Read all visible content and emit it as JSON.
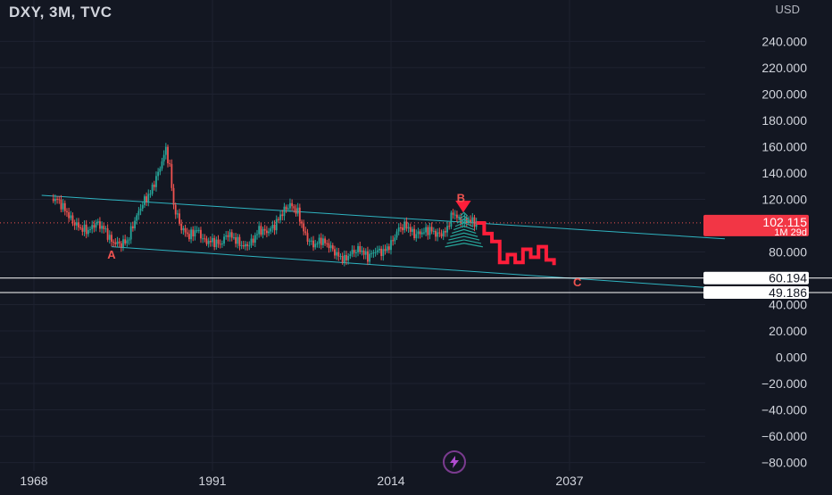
{
  "header": {
    "symbol": "DXY, 3M, TVC",
    "currency": "USD"
  },
  "markers": {
    "lightning_icon": "lightning-icon"
  },
  "colors": {
    "background": "#131722",
    "grid": "#1e2230",
    "axis_text": "#d1d4dc",
    "up": "#26a69a",
    "down": "#ef5350",
    "forecast": "#ff1e3a",
    "channel": "#2fb4c1",
    "price_label_bg": "#f23645",
    "hline": "#ffffff"
  },
  "chart_data": {
    "type": "candlestick",
    "x_axis": {
      "ticks": [
        "1968",
        "1991",
        "2014",
        "2037"
      ],
      "range": [
        1966,
        2057
      ]
    },
    "y_axis": {
      "ticks": [
        "240.000",
        "220.000",
        "200.000",
        "180.000",
        "160.000",
        "140.000",
        "120.000",
        "80.000",
        "40.000",
        "20.000",
        "0.000",
        "−20.000",
        "−40.000",
        "−60.000",
        "−80.000"
      ],
      "range": [
        -86,
        262
      ]
    },
    "price_series": [
      [
        1967,
        120.5
      ],
      [
        1969,
        121.0
      ],
      [
        1971,
        120.0
      ],
      [
        1972,
        112.0
      ],
      [
        1973,
        103.0
      ],
      [
        1974,
        98.0
      ],
      [
        1975,
        96.0
      ],
      [
        1976,
        102.0
      ],
      [
        1977,
        98.0
      ],
      [
        1978,
        88.0
      ],
      [
        1979,
        86.0
      ],
      [
        1980,
        88.0
      ],
      [
        1981,
        104.0
      ],
      [
        1982,
        117.0
      ],
      [
        1983,
        125.0
      ],
      [
        1984,
        140.0
      ],
      [
        1985,
        158.0
      ],
      [
        1985.5,
        144.0
      ],
      [
        1986,
        115.0
      ],
      [
        1987,
        98.0
      ],
      [
        1988,
        92.0
      ],
      [
        1989,
        97.0
      ],
      [
        1990,
        88.0
      ],
      [
        1991,
        88.0
      ],
      [
        1992,
        86.0
      ],
      [
        1993,
        94.0
      ],
      [
        1994,
        89.0
      ],
      [
        1995,
        84.0
      ],
      [
        1996,
        87.0
      ],
      [
        1997,
        97.0
      ],
      [
        1998,
        95.0
      ],
      [
        1999,
        100.0
      ],
      [
        2000,
        110.0
      ],
      [
        2001,
        116.0
      ],
      [
        2002,
        110.0
      ],
      [
        2003,
        92.0
      ],
      [
        2004,
        85.0
      ],
      [
        2005,
        89.0
      ],
      [
        2006,
        85.0
      ],
      [
        2007,
        78.0
      ],
      [
        2008,
        74.0
      ],
      [
        2009,
        80.0
      ],
      [
        2010,
        82.0
      ],
      [
        2011,
        76.0
      ],
      [
        2012,
        81.0
      ],
      [
        2013,
        80.0
      ],
      [
        2014,
        86.0
      ],
      [
        2015,
        98.0
      ],
      [
        2016,
        100.0
      ],
      [
        2017,
        93.0
      ],
      [
        2018,
        95.0
      ],
      [
        2019,
        97.0
      ],
      [
        2020,
        93.0
      ],
      [
        2021,
        95.0
      ],
      [
        2022,
        110.0
      ],
      [
        2023,
        103.0
      ],
      [
        2024,
        104.0
      ],
      [
        2025,
        102.1
      ]
    ],
    "forecast_path": [
      [
        2025,
        102.0
      ],
      [
        2026,
        94.0
      ],
      [
        2027,
        88.0
      ],
      [
        2028,
        72.0
      ],
      [
        2029,
        78.0
      ],
      [
        2030,
        72.0
      ],
      [
        2031,
        82.0
      ],
      [
        2032,
        76.0
      ],
      [
        2033,
        84.0
      ],
      [
        2034,
        74.0
      ],
      [
        2035,
        70.0
      ]
    ],
    "channel_lines": [
      {
        "from": [
          1969,
          123.0
        ],
        "to": [
          2057,
          90.0
        ]
      },
      {
        "from": [
          1978,
          84.0
        ],
        "to": [
          2057,
          52.0
        ]
      }
    ],
    "horizontal_lines": [
      60.194,
      49.186
    ],
    "labels": [
      {
        "text": "A",
        "x": 1978,
        "y": 75
      },
      {
        "text": "B",
        "x": 2023,
        "y": 118
      },
      {
        "text": "C",
        "x": 2038,
        "y": 54
      }
    ],
    "price_labels": [
      {
        "text": "102.115",
        "sub": "1M 29d",
        "value": 102.115,
        "style": "current"
      },
      {
        "text": "60.194",
        "value": 60.194,
        "style": "line"
      },
      {
        "text": "49.186",
        "value": 49.186,
        "style": "line"
      }
    ],
    "current_price": 102.115
  }
}
